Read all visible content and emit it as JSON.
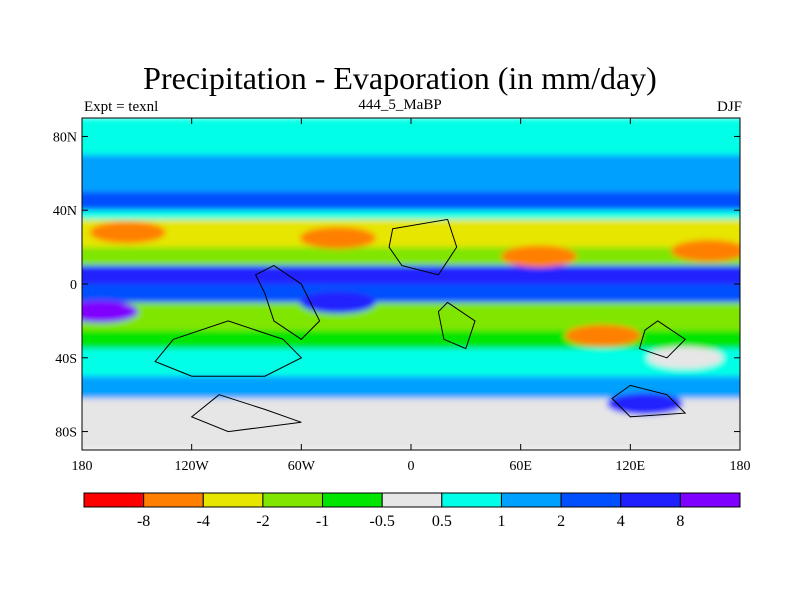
{
  "chart_data": {
    "type": "heatmap",
    "title": "Precipitation - Evaporation (in mm/day)",
    "left_string": "Expt = texnl",
    "center_string": "444_5_MaBP",
    "right_string": "DJF",
    "xlim": [
      -180,
      180
    ],
    "ylim": [
      -90,
      90
    ],
    "x_ticks": [
      {
        "value": -180,
        "label": "180"
      },
      {
        "value": -120,
        "label": "120W"
      },
      {
        "value": -60,
        "label": "60W"
      },
      {
        "value": 0,
        "label": "0"
      },
      {
        "value": 60,
        "label": "60E"
      },
      {
        "value": 120,
        "label": "120E"
      },
      {
        "value": 180,
        "label": "180"
      }
    ],
    "y_ticks": [
      {
        "value": 80,
        "label": "80N"
      },
      {
        "value": 40,
        "label": "40N"
      },
      {
        "value": 0,
        "label": "0"
      },
      {
        "value": -40,
        "label": "40S"
      },
      {
        "value": -80,
        "label": "80S"
      }
    ],
    "colorbar": {
      "colors": [
        "#ff0000",
        "#ff8000",
        "#e6e600",
        "#80e600",
        "#00e600",
        "#e6e6e6",
        "#00ffe6",
        "#00a0ff",
        "#0050ff",
        "#2020ff",
        "#8000ff"
      ],
      "labels": [
        "-8",
        "-4",
        "-2",
        "-1",
        "-0.5",
        "0.5",
        "1",
        "2",
        "4",
        "8"
      ]
    },
    "zonal_bands": [
      {
        "lat_top": 90,
        "lat_bottom": 70,
        "class": 6
      },
      {
        "lat_top": 70,
        "lat_bottom": 50,
        "class": 7
      },
      {
        "lat_top": 50,
        "lat_bottom": 40,
        "class": 8
      },
      {
        "lat_top": 40,
        "lat_bottom": 35,
        "class": 6
      },
      {
        "lat_top": 35,
        "lat_bottom": 20,
        "class": 2
      },
      {
        "lat_top": 20,
        "lat_bottom": 10,
        "class": 3
      },
      {
        "lat_top": 10,
        "lat_bottom": 0,
        "class": 9
      },
      {
        "lat_top": 0,
        "lat_bottom": -10,
        "class": 8
      },
      {
        "lat_top": -10,
        "lat_bottom": -25,
        "class": 3
      },
      {
        "lat_top": -25,
        "lat_bottom": -35,
        "class": 4
      },
      {
        "lat_top": -35,
        "lat_bottom": -50,
        "class": 6
      },
      {
        "lat_top": -50,
        "lat_bottom": -62,
        "class": 7
      },
      {
        "lat_top": -62,
        "lat_bottom": -90,
        "class": 5
      }
    ],
    "patches": [
      {
        "lon": -155,
        "lat": 28,
        "class": 1
      },
      {
        "lon": -40,
        "lat": 25,
        "class": 1
      },
      {
        "lon": 70,
        "lat": 15,
        "class": 1
      },
      {
        "lon": 163,
        "lat": 18,
        "class": 1
      },
      {
        "lon": 105,
        "lat": -28,
        "class": 1
      },
      {
        "lon": -170,
        "lat": -15,
        "class": 10
      },
      {
        "lon": -40,
        "lat": -10,
        "class": 9
      },
      {
        "lon": 128,
        "lat": -65,
        "class": 9
      },
      {
        "lon": -130,
        "lat": -82,
        "class": 5
      },
      {
        "lon": 150,
        "lat": -40,
        "class": 5
      }
    ]
  }
}
